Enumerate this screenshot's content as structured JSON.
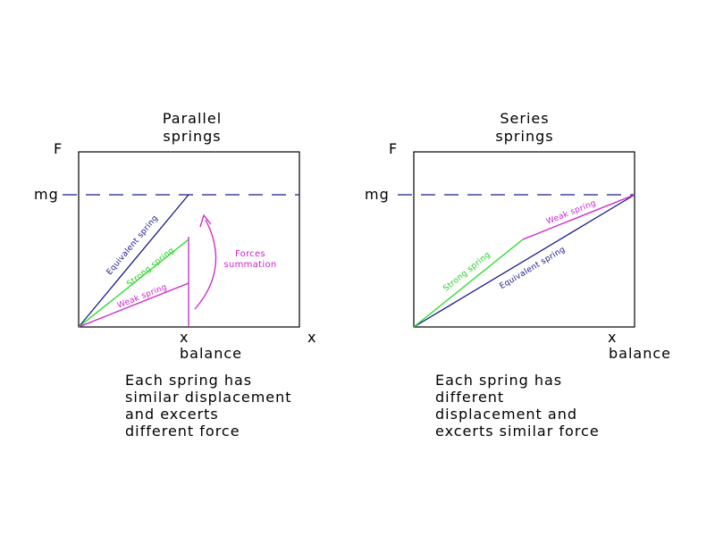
{
  "parallel": {
    "title": [
      "Parallel",
      "springs"
    ],
    "y_axis": "F",
    "level": "mg",
    "x_axis": "x",
    "balance_mark": "x",
    "balance": "balance",
    "lines": {
      "equivalent": "Equivalent spring",
      "strong": "Strong spring",
      "weak": "Weak spring"
    },
    "annotation": [
      "Forces",
      "summation"
    ],
    "caption": [
      "Each spring has",
      "similar displacement",
      "and excerts",
      "different force"
    ]
  },
  "series": {
    "title": [
      "Series",
      "springs"
    ],
    "y_axis": "F",
    "level": "mg",
    "balance_mark": "x",
    "balance": "balance",
    "lines": {
      "equivalent": "Equivalent spring",
      "strong": "Strong spring",
      "weak": "Weak spring"
    },
    "caption": [
      "Each spring has",
      "different",
      "displacement and",
      "excerts similar force"
    ]
  }
}
